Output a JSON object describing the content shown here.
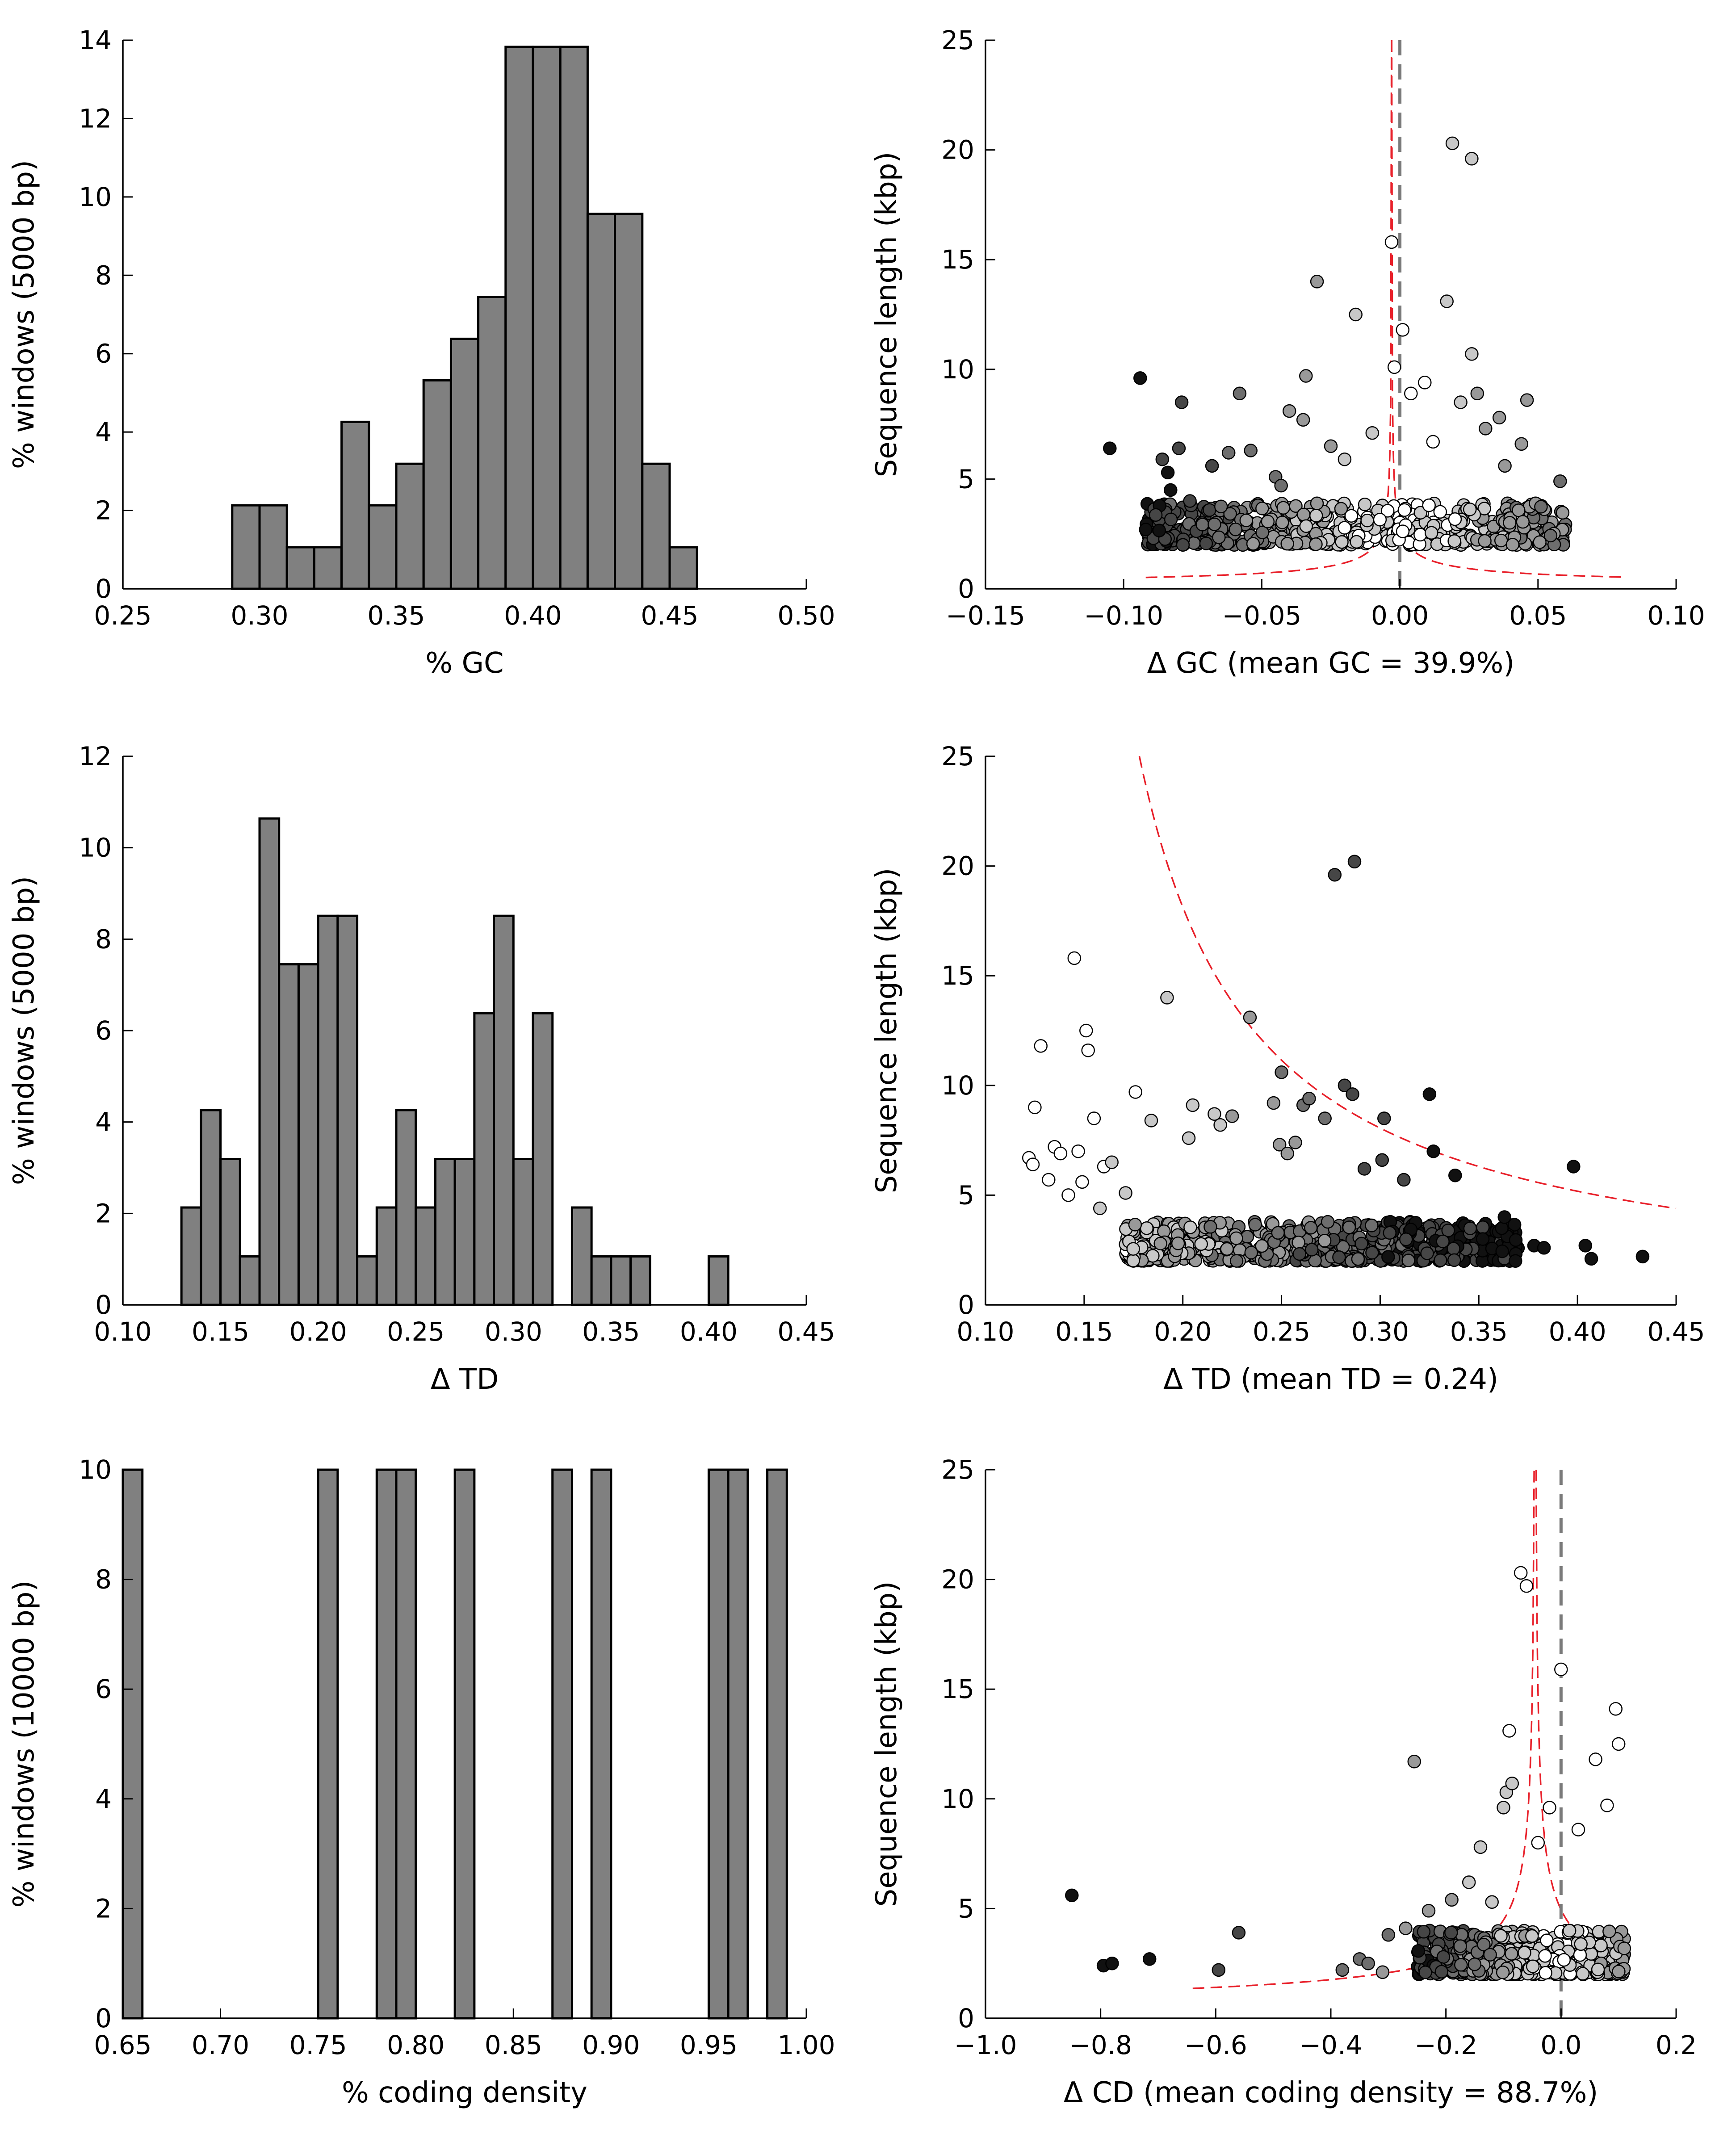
{
  "colors": {
    "bar_fill": "#808080",
    "bar_stroke": "#000000",
    "reference_curve": "#e8202a",
    "zero_line": "#7a7a7a",
    "point_stroke": "#000000",
    "point_palette": [
      "#ffffff",
      "#c8c8c8",
      "#999999",
      "#6e6e6e",
      "#464646",
      "#111111"
    ]
  },
  "chart_data": [
    {
      "id": "gc-hist",
      "type": "bar",
      "xlabel": "% GC",
      "ylabel": "% windows (5000 bp)",
      "xlim": [
        0.25,
        0.5
      ],
      "ylim": [
        0,
        14
      ],
      "xticks": [
        "0.25",
        "0.30",
        "0.35",
        "0.40",
        "0.45",
        "0.50"
      ],
      "yticks": [
        "0",
        "2",
        "4",
        "6",
        "8",
        "10",
        "12",
        "14"
      ],
      "bin_width": 0.01,
      "bins": [
        {
          "x0": 0.29,
          "value": 2.13
        },
        {
          "x0": 0.3,
          "value": 2.13
        },
        {
          "x0": 0.31,
          "value": 1.06
        },
        {
          "x0": 0.32,
          "value": 1.06
        },
        {
          "x0": 0.33,
          "value": 4.26
        },
        {
          "x0": 0.34,
          "value": 2.13
        },
        {
          "x0": 0.35,
          "value": 3.19
        },
        {
          "x0": 0.36,
          "value": 5.32
        },
        {
          "x0": 0.37,
          "value": 6.38
        },
        {
          "x0": 0.38,
          "value": 7.45
        },
        {
          "x0": 0.39,
          "value": 13.83
        },
        {
          "x0": 0.4,
          "value": 13.83
        },
        {
          "x0": 0.41,
          "value": 13.83
        },
        {
          "x0": 0.42,
          "value": 9.57
        },
        {
          "x0": 0.43,
          "value": 9.57
        },
        {
          "x0": 0.44,
          "value": 3.19
        },
        {
          "x0": 0.45,
          "value": 1.06
        }
      ]
    },
    {
      "id": "gc-scatter",
      "type": "scatter",
      "xlabel": "Δ GC (mean GC = 39.9%)",
      "ylabel": "Sequence length (kbp)",
      "xlim": [
        -0.15,
        0.1
      ],
      "ylim": [
        0,
        25
      ],
      "xticks": [
        "−0.15",
        "−0.10",
        "−0.05",
        "0.00",
        "0.05",
        "0.10"
      ],
      "yticks": [
        "0",
        "5",
        "10",
        "15",
        "20",
        "25"
      ],
      "zero_line_x": 0.0,
      "reference_curve": {
        "shape": "symmetric",
        "center": -0.003,
        "k": 0.154,
        "x_min": -0.092,
        "x_max": 0.08
      },
      "cloud": {
        "count": 560,
        "x_range": [
          -0.092,
          0.06
        ],
        "y_base": 2.0,
        "y_spread": 1.9,
        "shade_by_distance": true,
        "seed": 11
      },
      "points": [
        {
          "x": -0.105,
          "y": 6.4,
          "s": 5
        },
        {
          "x": -0.094,
          "y": 9.6,
          "s": 5
        },
        {
          "x": -0.092,
          "y": 2.7,
          "s": 5
        },
        {
          "x": -0.086,
          "y": 5.9,
          "s": 4
        },
        {
          "x": -0.084,
          "y": 5.3,
          "s": 5
        },
        {
          "x": -0.083,
          "y": 4.5,
          "s": 5
        },
        {
          "x": -0.08,
          "y": 6.4,
          "s": 4
        },
        {
          "x": -0.079,
          "y": 8.5,
          "s": 4
        },
        {
          "x": -0.076,
          "y": 4.0,
          "s": 4
        },
        {
          "x": -0.068,
          "y": 5.6,
          "s": 4
        },
        {
          "x": -0.062,
          "y": 6.2,
          "s": 3
        },
        {
          "x": -0.058,
          "y": 8.9,
          "s": 3
        },
        {
          "x": -0.054,
          "y": 6.3,
          "s": 3
        },
        {
          "x": -0.045,
          "y": 5.1,
          "s": 3
        },
        {
          "x": -0.043,
          "y": 4.7,
          "s": 3
        },
        {
          "x": -0.04,
          "y": 8.1,
          "s": 2
        },
        {
          "x": -0.035,
          "y": 7.7,
          "s": 2
        },
        {
          "x": -0.034,
          "y": 9.7,
          "s": 2
        },
        {
          "x": -0.03,
          "y": 14.0,
          "s": 2
        },
        {
          "x": -0.025,
          "y": 6.5,
          "s": 2
        },
        {
          "x": -0.02,
          "y": 5.9,
          "s": 1
        },
        {
          "x": -0.016,
          "y": 12.5,
          "s": 1
        },
        {
          "x": -0.01,
          "y": 7.1,
          "s": 1
        },
        {
          "x": -0.003,
          "y": 15.8,
          "s": 0
        },
        {
          "x": -0.002,
          "y": 10.1,
          "s": 0
        },
        {
          "x": 0.001,
          "y": 11.8,
          "s": 0
        },
        {
          "x": 0.004,
          "y": 8.9,
          "s": 0
        },
        {
          "x": 0.009,
          "y": 9.4,
          "s": 0
        },
        {
          "x": 0.012,
          "y": 6.7,
          "s": 0
        },
        {
          "x": 0.017,
          "y": 13.1,
          "s": 1
        },
        {
          "x": 0.019,
          "y": 20.3,
          "s": 1
        },
        {
          "x": 0.022,
          "y": 8.5,
          "s": 1
        },
        {
          "x": 0.026,
          "y": 19.6,
          "s": 1
        },
        {
          "x": 0.026,
          "y": 10.7,
          "s": 1
        },
        {
          "x": 0.028,
          "y": 8.9,
          "s": 2
        },
        {
          "x": 0.031,
          "y": 7.3,
          "s": 2
        },
        {
          "x": 0.036,
          "y": 7.8,
          "s": 2
        },
        {
          "x": 0.038,
          "y": 5.6,
          "s": 2
        },
        {
          "x": 0.044,
          "y": 6.6,
          "s": 2
        },
        {
          "x": 0.046,
          "y": 8.6,
          "s": 2
        },
        {
          "x": 0.058,
          "y": 4.9,
          "s": 3
        }
      ]
    },
    {
      "id": "td-hist",
      "type": "bar",
      "xlabel": "Δ TD",
      "ylabel": "% windows (5000 bp)",
      "xlim": [
        0.1,
        0.45
      ],
      "ylim": [
        0,
        12
      ],
      "xticks": [
        "0.10",
        "0.15",
        "0.20",
        "0.25",
        "0.30",
        "0.35",
        "0.40",
        "0.45"
      ],
      "yticks": [
        "0",
        "2",
        "4",
        "6",
        "8",
        "10",
        "12"
      ],
      "bin_width": 0.01,
      "bins": [
        {
          "x0": 0.13,
          "value": 2.13
        },
        {
          "x0": 0.14,
          "value": 4.26
        },
        {
          "x0": 0.15,
          "value": 3.19
        },
        {
          "x0": 0.16,
          "value": 1.06
        },
        {
          "x0": 0.17,
          "value": 10.64
        },
        {
          "x0": 0.18,
          "value": 7.45
        },
        {
          "x0": 0.19,
          "value": 7.45
        },
        {
          "x0": 0.2,
          "value": 8.51
        },
        {
          "x0": 0.21,
          "value": 8.51
        },
        {
          "x0": 0.22,
          "value": 1.06
        },
        {
          "x0": 0.23,
          "value": 2.13
        },
        {
          "x0": 0.24,
          "value": 4.26
        },
        {
          "x0": 0.25,
          "value": 2.13
        },
        {
          "x0": 0.26,
          "value": 3.19
        },
        {
          "x0": 0.27,
          "value": 3.19
        },
        {
          "x0": 0.28,
          "value": 6.38
        },
        {
          "x0": 0.29,
          "value": 8.51
        },
        {
          "x0": 0.3,
          "value": 3.19
        },
        {
          "x0": 0.31,
          "value": 6.38
        },
        {
          "x0": 0.33,
          "value": 2.13
        },
        {
          "x0": 0.34,
          "value": 1.06
        },
        {
          "x0": 0.35,
          "value": 1.06
        },
        {
          "x0": 0.36,
          "value": 1.06
        },
        {
          "x0": 0.4,
          "value": 1.06
        }
      ]
    },
    {
      "id": "td-scatter",
      "type": "scatter",
      "xlabel": "Δ TD (mean TD = 0.24)",
      "ylabel": "Sequence length (kbp)",
      "xlim": [
        0.1,
        0.45
      ],
      "ylim": [
        0,
        25
      ],
      "xticks": [
        "0.10",
        "0.15",
        "0.20",
        "0.25",
        "0.30",
        "0.35",
        "0.40",
        "0.45"
      ],
      "yticks": [
        "0",
        "5",
        "10",
        "15",
        "20",
        "25"
      ],
      "reference_curve": {
        "shape": "decay",
        "origin": 0.12,
        "k": 1.45,
        "x_min": 0.178,
        "x_max": 0.45
      },
      "cloud": {
        "count": 620,
        "x_range": [
          0.17,
          0.37
        ],
        "y_base": 2.0,
        "y_spread": 1.8,
        "shade_by_x": [
          0.17,
          0.4
        ],
        "seed": 23
      },
      "points": [
        {
          "x": 0.122,
          "y": 6.7,
          "s": 0
        },
        {
          "x": 0.124,
          "y": 6.4,
          "s": 0
        },
        {
          "x": 0.125,
          "y": 9.0,
          "s": 0
        },
        {
          "x": 0.128,
          "y": 11.8,
          "s": 0
        },
        {
          "x": 0.132,
          "y": 5.7,
          "s": 0
        },
        {
          "x": 0.135,
          "y": 7.2,
          "s": 0
        },
        {
          "x": 0.138,
          "y": 6.9,
          "s": 0
        },
        {
          "x": 0.142,
          "y": 5.0,
          "s": 0
        },
        {
          "x": 0.145,
          "y": 15.8,
          "s": 0
        },
        {
          "x": 0.147,
          "y": 7.0,
          "s": 0
        },
        {
          "x": 0.149,
          "y": 5.6,
          "s": 0
        },
        {
          "x": 0.151,
          "y": 12.5,
          "s": 0
        },
        {
          "x": 0.152,
          "y": 11.6,
          "s": 0
        },
        {
          "x": 0.155,
          "y": 8.5,
          "s": 0
        },
        {
          "x": 0.158,
          "y": 4.4,
          "s": 1
        },
        {
          "x": 0.16,
          "y": 6.3,
          "s": 0
        },
        {
          "x": 0.164,
          "y": 6.5,
          "s": 1
        },
        {
          "x": 0.171,
          "y": 5.1,
          "s": 1
        },
        {
          "x": 0.176,
          "y": 9.7,
          "s": 0
        },
        {
          "x": 0.184,
          "y": 8.4,
          "s": 1
        },
        {
          "x": 0.192,
          "y": 14.0,
          "s": 1
        },
        {
          "x": 0.203,
          "y": 7.6,
          "s": 1
        },
        {
          "x": 0.205,
          "y": 9.1,
          "s": 1
        },
        {
          "x": 0.216,
          "y": 8.7,
          "s": 1
        },
        {
          "x": 0.219,
          "y": 8.2,
          "s": 1
        },
        {
          "x": 0.225,
          "y": 8.6,
          "s": 2
        },
        {
          "x": 0.234,
          "y": 13.1,
          "s": 2
        },
        {
          "x": 0.246,
          "y": 9.2,
          "s": 2
        },
        {
          "x": 0.249,
          "y": 7.3,
          "s": 2
        },
        {
          "x": 0.25,
          "y": 10.6,
          "s": 3
        },
        {
          "x": 0.253,
          "y": 6.9,
          "s": 2
        },
        {
          "x": 0.257,
          "y": 7.4,
          "s": 2
        },
        {
          "x": 0.261,
          "y": 9.1,
          "s": 3
        },
        {
          "x": 0.264,
          "y": 9.4,
          "s": 3
        },
        {
          "x": 0.272,
          "y": 8.5,
          "s": 3
        },
        {
          "x": 0.277,
          "y": 19.6,
          "s": 4
        },
        {
          "x": 0.282,
          "y": 10.0,
          "s": 4
        },
        {
          "x": 0.286,
          "y": 9.6,
          "s": 4
        },
        {
          "x": 0.287,
          "y": 20.2,
          "s": 4
        },
        {
          "x": 0.292,
          "y": 6.2,
          "s": 4
        },
        {
          "x": 0.301,
          "y": 6.6,
          "s": 4
        },
        {
          "x": 0.302,
          "y": 8.5,
          "s": 4
        },
        {
          "x": 0.312,
          "y": 5.7,
          "s": 4
        },
        {
          "x": 0.325,
          "y": 9.6,
          "s": 5
        },
        {
          "x": 0.327,
          "y": 7.0,
          "s": 5
        },
        {
          "x": 0.338,
          "y": 5.9,
          "s": 5
        },
        {
          "x": 0.352,
          "y": 3.0,
          "s": 5
        },
        {
          "x": 0.363,
          "y": 4.0,
          "s": 5
        },
        {
          "x": 0.378,
          "y": 2.7,
          "s": 5
        },
        {
          "x": 0.383,
          "y": 2.6,
          "s": 5
        },
        {
          "x": 0.398,
          "y": 6.3,
          "s": 5
        },
        {
          "x": 0.404,
          "y": 2.7,
          "s": 5
        },
        {
          "x": 0.407,
          "y": 2.1,
          "s": 5
        },
        {
          "x": 0.433,
          "y": 2.2,
          "s": 5
        }
      ]
    },
    {
      "id": "cd-hist",
      "type": "bar",
      "xlabel": "% coding density",
      "ylabel": "% windows (10000 bp)",
      "xlim": [
        0.65,
        1.0
      ],
      "ylim": [
        0,
        10
      ],
      "xticks": [
        "0.65",
        "0.70",
        "0.75",
        "0.80",
        "0.85",
        "0.90",
        "0.95",
        "1.00"
      ],
      "yticks": [
        "0",
        "2",
        "4",
        "6",
        "8",
        "10"
      ],
      "bin_width": 0.01,
      "bins": [
        {
          "x0": 0.65,
          "value": 10
        },
        {
          "x0": 0.75,
          "value": 10
        },
        {
          "x0": 0.78,
          "value": 10
        },
        {
          "x0": 0.79,
          "value": 10
        },
        {
          "x0": 0.82,
          "value": 10
        },
        {
          "x0": 0.87,
          "value": 10
        },
        {
          "x0": 0.89,
          "value": 10
        },
        {
          "x0": 0.95,
          "value": 10
        },
        {
          "x0": 0.96,
          "value": 10
        },
        {
          "x0": 0.98,
          "value": 10
        }
      ]
    },
    {
      "id": "cd-scatter",
      "type": "scatter",
      "xlabel": "Δ CD (mean coding density = 88.7%)",
      "ylabel": "Sequence length (kbp)",
      "xlim": [
        -1.0,
        0.2
      ],
      "ylim": [
        0,
        25
      ],
      "xticks": [
        "−1.0",
        "−0.8",
        "−0.6",
        "−0.4",
        "−0.2",
        "0.0",
        "0.2"
      ],
      "yticks": [
        "0",
        "5",
        "10",
        "15",
        "20",
        "25"
      ],
      "zero_line_x": 0.0,
      "reference_curve": {
        "shape": "symmetric",
        "center": -0.045,
        "k": 1.05,
        "x_min": -0.64,
        "x_max": 0.125
      },
      "cloud": {
        "count": 560,
        "x_range": [
          -0.25,
          0.11
        ],
        "y_base": 2.0,
        "y_spread": 2.0,
        "shade_by_distance": true,
        "seed": 37
      },
      "points": [
        {
          "x": -0.85,
          "y": 5.6,
          "s": 5
        },
        {
          "x": -0.795,
          "y": 2.4,
          "s": 5
        },
        {
          "x": -0.78,
          "y": 2.5,
          "s": 5
        },
        {
          "x": -0.715,
          "y": 2.7,
          "s": 5
        },
        {
          "x": -0.595,
          "y": 2.2,
          "s": 4
        },
        {
          "x": -0.56,
          "y": 3.9,
          "s": 4
        },
        {
          "x": -0.38,
          "y": 2.2,
          "s": 3
        },
        {
          "x": -0.35,
          "y": 2.7,
          "s": 3
        },
        {
          "x": -0.335,
          "y": 2.5,
          "s": 3
        },
        {
          "x": -0.31,
          "y": 2.1,
          "s": 2
        },
        {
          "x": -0.3,
          "y": 3.8,
          "s": 3
        },
        {
          "x": -0.27,
          "y": 4.1,
          "s": 2
        },
        {
          "x": -0.255,
          "y": 11.7,
          "s": 2
        },
        {
          "x": -0.23,
          "y": 4.9,
          "s": 2
        },
        {
          "x": -0.19,
          "y": 5.4,
          "s": 2
        },
        {
          "x": -0.16,
          "y": 6.2,
          "s": 1
        },
        {
          "x": -0.14,
          "y": 7.8,
          "s": 1
        },
        {
          "x": -0.12,
          "y": 5.3,
          "s": 1
        },
        {
          "x": -0.1,
          "y": 9.6,
          "s": 1
        },
        {
          "x": -0.095,
          "y": 10.3,
          "s": 1
        },
        {
          "x": -0.09,
          "y": 13.1,
          "s": 0
        },
        {
          "x": -0.085,
          "y": 10.7,
          "s": 1
        },
        {
          "x": -0.07,
          "y": 20.3,
          "s": 0
        },
        {
          "x": -0.06,
          "y": 19.7,
          "s": 0
        },
        {
          "x": -0.04,
          "y": 8.0,
          "s": 0
        },
        {
          "x": -0.02,
          "y": 9.6,
          "s": 0
        },
        {
          "x": 0.0,
          "y": 15.9,
          "s": 0
        },
        {
          "x": 0.03,
          "y": 8.6,
          "s": 0
        },
        {
          "x": 0.06,
          "y": 11.8,
          "s": 0
        },
        {
          "x": 0.08,
          "y": 9.7,
          "s": 0
        },
        {
          "x": 0.095,
          "y": 14.1,
          "s": 0
        },
        {
          "x": 0.1,
          "y": 12.5,
          "s": 0
        }
      ]
    }
  ]
}
